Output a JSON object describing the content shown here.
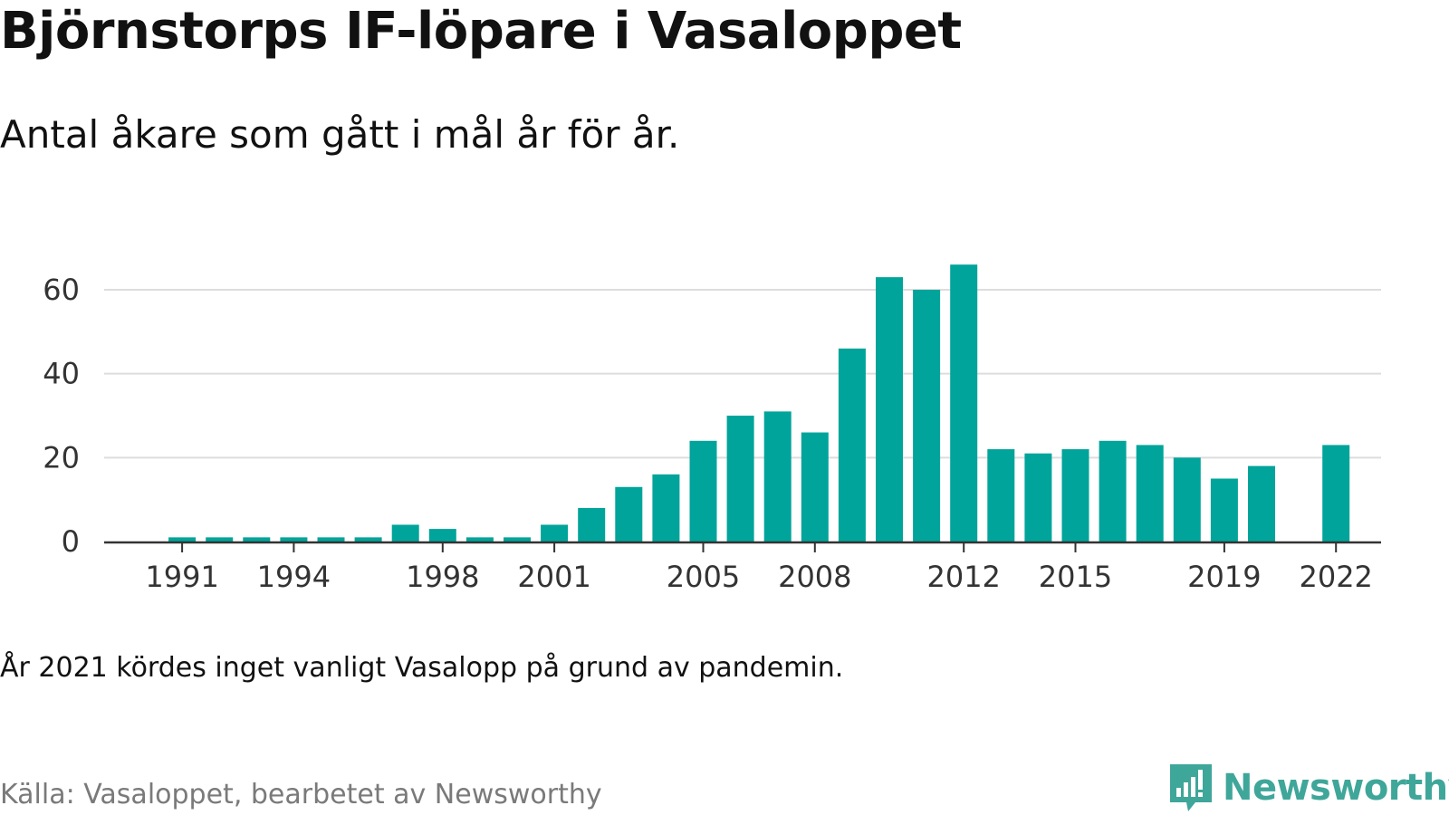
{
  "header": {
    "title": "Björnstorps IF-löpare i Vasaloppet",
    "subtitle": "Antal åkare som gått i mål år för år."
  },
  "footer": {
    "note": "År 2021 kördes inget vanligt Vasalopp på grund av pandemin.",
    "source": "Källa: Vasaloppet, bearbetet av Newsworthy",
    "brand": "Newsworthy"
  },
  "colors": {
    "bar": "#00a49a",
    "grid": "#dddddd",
    "axis": "#333333",
    "brand": "#3fa69a"
  },
  "chart_data": {
    "type": "bar",
    "categories": [
      "1990",
      "1991",
      "1992",
      "1993",
      "1994",
      "1995",
      "1996",
      "1997",
      "1998",
      "1999",
      "2000",
      "2001",
      "2002",
      "2003",
      "2004",
      "2005",
      "2006",
      "2007",
      "2008",
      "2009",
      "2010",
      "2011",
      "2012",
      "2013",
      "2014",
      "2015",
      "2016",
      "2017",
      "2018",
      "2019",
      "2020",
      "2021",
      "2022"
    ],
    "values": [
      0,
      1,
      1,
      1,
      1,
      1,
      1,
      4,
      3,
      1,
      1,
      4,
      8,
      13,
      16,
      24,
      30,
      31,
      26,
      46,
      63,
      60,
      66,
      22,
      21,
      22,
      24,
      23,
      20,
      15,
      18,
      null,
      23
    ],
    "x_ticks": [
      "1991",
      "1994",
      "1998",
      "2001",
      "2005",
      "2008",
      "2012",
      "2015",
      "2019",
      "2022"
    ],
    "y_ticks": [
      0,
      20,
      40,
      60
    ],
    "ylim": [
      0,
      68
    ],
    "grid": true,
    "legend": "none"
  }
}
